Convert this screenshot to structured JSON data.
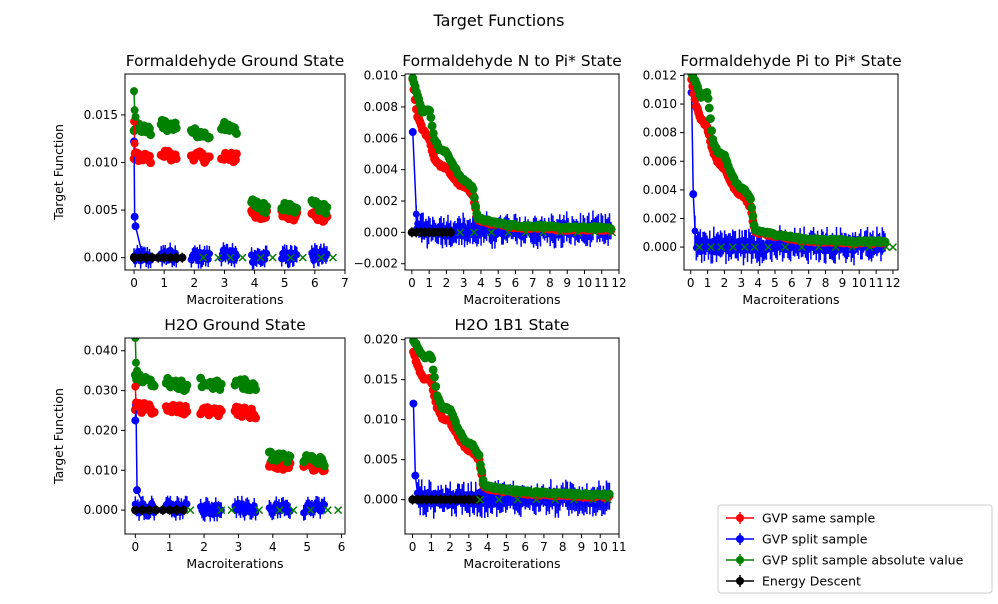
{
  "figure": {
    "suptitle": "Target Functions",
    "legend": {
      "placement": "lower-right",
      "entries": [
        {
          "label": "GVP same sample",
          "color": "#ff0000"
        },
        {
          "label": "GVP split sample",
          "color": "#0000ff"
        },
        {
          "label": "GVP split sample absolute value",
          "color": "#008000"
        },
        {
          "label": "Energy Descent",
          "color": "#000000"
        }
      ]
    }
  },
  "chart_data": [
    {
      "type": "scatter",
      "title": "Formaldehyde Ground State",
      "xlabel": "Macroiterations",
      "ylabel": "Target Function",
      "xlim": [
        -0.3,
        7
      ],
      "ylim": [
        -0.0013,
        0.0193
      ],
      "xticks": [
        0,
        1,
        2,
        3,
        4,
        5,
        6,
        7
      ],
      "yticks": [
        0.0,
        0.005,
        0.01,
        0.015
      ],
      "ytick_labels": [
        "0.000",
        "0.005",
        "0.010",
        "0.015"
      ],
      "grid": false,
      "groups": [
        {
          "start": 0,
          "end": 0.55,
          "same": 0.0107,
          "abs": 0.0137,
          "split": 0.0,
          "energy": 0.0
        },
        {
          "start": 0.9,
          "end": 1.4,
          "same": 0.011,
          "abs": 0.014,
          "split": 0.0003,
          "energy": 0.0
        },
        {
          "start": 1.9,
          "end": 2.5,
          "same": 0.0108,
          "abs": 0.0132,
          "split": 0.0001
        },
        {
          "start": 2.9,
          "end": 3.4,
          "same": 0.0108,
          "abs": 0.0138,
          "split": 0.0003
        },
        {
          "start": 3.9,
          "end": 4.4,
          "same": 0.0048,
          "abs": 0.0056,
          "split": 0.0
        },
        {
          "start": 4.9,
          "end": 5.4,
          "same": 0.0047,
          "abs": 0.0055,
          "split": 0.0001
        },
        {
          "start": 5.9,
          "end": 6.4,
          "same": 0.0046,
          "abs": 0.0055,
          "split": 0.0002
        }
      ],
      "spike": [
        {
          "x": 0,
          "same": 0.0143,
          "abs": 0.0175,
          "split": 0.0122
        },
        {
          "x": 0.02,
          "same": 0.012,
          "abs": 0.0155,
          "split": 0.0043
        },
        {
          "x": 0.05,
          "same": 0.011,
          "abs": 0.0148,
          "split": 0.0033
        }
      ],
      "energy": {
        "x": [
          0,
          0.2,
          0.4,
          0.6,
          0.8,
          1.0,
          1.2,
          1.4,
          1.6
        ],
        "y": [
          0,
          0,
          0,
          0,
          0,
          0,
          0,
          0,
          0
        ]
      },
      "x_markers": [
        2.3,
        2.8,
        3.2,
        3.6,
        4.2,
        4.6,
        5.2,
        5.6,
        6.2,
        6.6
      ]
    },
    {
      "type": "scatter",
      "title": "Formaldehyde N to Pi* State",
      "xlabel": "Macroiterations",
      "ylabel": "",
      "xlim": [
        -0.4,
        12
      ],
      "ylim": [
        -0.0024,
        0.0101
      ],
      "xticks": [
        0,
        1,
        2,
        3,
        4,
        5,
        6,
        7,
        8,
        9,
        10,
        11,
        12
      ],
      "yticks": [
        -0.002,
        0.0,
        0.002,
        0.004,
        0.006,
        0.008,
        0.01
      ],
      "ytick_labels": [
        "−0.002",
        "0.000",
        "0.002",
        "0.004",
        "0.006",
        "0.008",
        "0.010"
      ],
      "grid": false,
      "curve": {
        "same": [
          [
            0.05,
            0.0097
          ],
          [
            0.3,
            0.0075
          ],
          [
            0.6,
            0.0066
          ],
          [
            1.0,
            0.006
          ],
          [
            1.3,
            0.0047
          ],
          [
            1.6,
            0.0043
          ],
          [
            2.0,
            0.0041
          ],
          [
            2.4,
            0.0035
          ],
          [
            2.8,
            0.003
          ],
          [
            3.2,
            0.0028
          ],
          [
            3.55,
            0.0024
          ],
          [
            3.8,
            0.0008
          ],
          [
            4.5,
            0.0006
          ],
          [
            5.5,
            0.0004
          ],
          [
            6.5,
            0.0003
          ],
          [
            7.5,
            0.0003
          ],
          [
            8.5,
            0.0002
          ],
          [
            9.5,
            0.0002
          ],
          [
            10.5,
            0.0002
          ],
          [
            11.6,
            0.0002
          ]
        ],
        "abs": [
          [
            0.05,
            0.0099
          ],
          [
            0.3,
            0.0088
          ],
          [
            0.6,
            0.0077
          ],
          [
            1.0,
            0.0079
          ],
          [
            1.3,
            0.006
          ],
          [
            1.6,
            0.0053
          ],
          [
            2.0,
            0.0051
          ],
          [
            2.4,
            0.0043
          ],
          [
            2.8,
            0.0035
          ],
          [
            3.2,
            0.0032
          ],
          [
            3.55,
            0.0028
          ],
          [
            3.8,
            0.0009
          ],
          [
            4.5,
            0.0007
          ],
          [
            5.5,
            0.0005
          ],
          [
            6.5,
            0.0004
          ],
          [
            7.5,
            0.0004
          ],
          [
            8.5,
            0.0003
          ],
          [
            9.5,
            0.0003
          ],
          [
            10.5,
            0.0003
          ],
          [
            11.6,
            0.0003
          ]
        ],
        "split": [
          [
            0.05,
            0.0064
          ],
          [
            0.3,
            0.0002
          ],
          [
            1.0,
            0.0002
          ],
          [
            2.0,
            0.0001
          ],
          [
            3.0,
            0.0001
          ],
          [
            4.0,
            0.0001
          ],
          [
            5.0,
            0.0001
          ],
          [
            6.0,
            0.0001
          ],
          [
            7.0,
            0.0001
          ],
          [
            8.0,
            0.0001
          ],
          [
            9.0,
            0.0001
          ],
          [
            10.0,
            0.0001
          ],
          [
            11.6,
            0.0001
          ]
        ],
        "split_err": 0.0008
      },
      "energy": {
        "x": [
          0,
          0.25,
          0.5,
          0.75,
          1.0,
          1.25,
          1.5,
          1.75,
          2.0,
          2.25
        ],
        "y": [
          0,
          0,
          0,
          0,
          0,
          0,
          0,
          0,
          0,
          0
        ]
      },
      "x_markers": [
        2.8,
        3.6,
        4.6,
        5.6,
        6.6,
        7.6,
        8.6,
        9.6,
        10.6,
        11.6
      ]
    },
    {
      "type": "scatter",
      "title": "Formaldehyde Pi to Pi* State",
      "xlabel": "Macroiterations",
      "ylabel": "",
      "xlim": [
        -0.4,
        12.3
      ],
      "ylim": [
        -0.0016,
        0.0121
      ],
      "xticks": [
        0,
        1,
        2,
        3,
        4,
        5,
        6,
        7,
        8,
        9,
        10,
        11,
        12
      ],
      "yticks": [
        0.0,
        0.002,
        0.004,
        0.006,
        0.008,
        0.01,
        0.012
      ],
      "ytick_labels": [
        "0.000",
        "0.002",
        "0.004",
        "0.006",
        "0.008",
        "0.010",
        "0.012"
      ],
      "grid": false,
      "curve": {
        "same": [
          [
            0.05,
            0.0118
          ],
          [
            0.3,
            0.01
          ],
          [
            0.6,
            0.009
          ],
          [
            1.0,
            0.0083
          ],
          [
            1.3,
            0.0068
          ],
          [
            1.6,
            0.006
          ],
          [
            2.0,
            0.0055
          ],
          [
            2.4,
            0.0045
          ],
          [
            2.8,
            0.0038
          ],
          [
            3.2,
            0.0035
          ],
          [
            3.55,
            0.0028
          ],
          [
            3.8,
            0.0011
          ],
          [
            4.5,
            0.0009
          ],
          [
            5.5,
            0.0007
          ],
          [
            6.5,
            0.0005
          ],
          [
            7.5,
            0.0004
          ],
          [
            8.5,
            0.0004
          ],
          [
            9.5,
            0.0003
          ],
          [
            10.5,
            0.0003
          ],
          [
            11.6,
            0.0003
          ]
        ],
        "abs": [
          [
            0.05,
            0.0121
          ],
          [
            0.3,
            0.0115
          ],
          [
            0.6,
            0.0105
          ],
          [
            1.0,
            0.0108
          ],
          [
            1.3,
            0.0075
          ],
          [
            1.6,
            0.0066
          ],
          [
            2.0,
            0.0065
          ],
          [
            2.4,
            0.0051
          ],
          [
            2.8,
            0.0043
          ],
          [
            3.2,
            0.004
          ],
          [
            3.55,
            0.0033
          ],
          [
            3.8,
            0.0012
          ],
          [
            4.5,
            0.001
          ],
          [
            5.5,
            0.0008
          ],
          [
            6.5,
            0.0006
          ],
          [
            7.5,
            0.0005
          ],
          [
            8.5,
            0.0005
          ],
          [
            9.5,
            0.0004
          ],
          [
            10.5,
            0.0004
          ],
          [
            11.6,
            0.0004
          ]
        ],
        "split": [
          [
            0.05,
            0.0108
          ],
          [
            0.15,
            0.0037
          ],
          [
            0.3,
            0.0002
          ],
          [
            1.0,
            0.0001
          ],
          [
            2.0,
            0.0001
          ],
          [
            3.0,
            0.0001
          ],
          [
            4.0,
            0.0001
          ],
          [
            5.0,
            0.0001
          ],
          [
            6.0,
            0.0001
          ],
          [
            7.0,
            0.0001
          ],
          [
            8.0,
            0.0001
          ],
          [
            9.0,
            0.0001
          ],
          [
            10.0,
            0.0001
          ],
          [
            11.6,
            0.0001
          ]
        ],
        "split_err": 0.0009
      },
      "energy": {
        "x": [],
        "y": []
      },
      "x_markers": [
        0.5,
        1.2,
        1.8,
        2.5,
        3.2,
        3.8,
        4.6,
        5.6,
        6.6,
        7.6,
        8.6,
        9.6,
        10.6,
        11.6,
        12.0
      ]
    },
    {
      "type": "scatter",
      "title": "H2O Ground State",
      "xlabel": "Macroiterations",
      "ylabel": "Target Function",
      "xlim": [
        -0.3,
        6.1
      ],
      "ylim": [
        -0.006,
        0.0432
      ],
      "xticks": [
        0,
        1,
        2,
        3,
        4,
        5,
        6
      ],
      "yticks": [
        0.0,
        0.01,
        0.02,
        0.03,
        0.04
      ],
      "ytick_labels": [
        "0.000",
        "0.010",
        "0.020",
        "0.030",
        "0.040"
      ],
      "grid": false,
      "groups": [
        {
          "start": 0,
          "end": 0.55,
          "same": 0.026,
          "abs": 0.033,
          "split": 0.0005,
          "energy": 0.0
        },
        {
          "start": 0.9,
          "end": 1.5,
          "same": 0.026,
          "abs": 0.032,
          "split": 0.0005,
          "energy": 0.0
        },
        {
          "start": 1.9,
          "end": 2.5,
          "same": 0.025,
          "abs": 0.032,
          "split": 0.0003
        },
        {
          "start": 2.9,
          "end": 3.5,
          "same": 0.025,
          "abs": 0.032,
          "split": 0.0005
        },
        {
          "start": 3.9,
          "end": 4.5,
          "same": 0.012,
          "abs": 0.0135,
          "split": 0.0005
        },
        {
          "start": 4.9,
          "end": 5.5,
          "same": 0.0115,
          "abs": 0.013,
          "split": 0.0005
        }
      ],
      "spike": [
        {
          "x": 0,
          "same": 0.031,
          "abs": 0.0432,
          "split": 0.0225
        },
        {
          "x": 0.02,
          "same": 0.027,
          "abs": 0.037,
          "split": 0.0265
        },
        {
          "x": 0.05,
          "same": 0.026,
          "abs": 0.035,
          "split": 0.005
        }
      ],
      "energy": {
        "x": [
          0,
          0.2,
          0.4,
          0.6,
          0.8,
          1.0,
          1.2,
          1.4
        ],
        "y": [
          0,
          0,
          0,
          0,
          0,
          0,
          0,
          0
        ]
      },
      "x_markers": [
        1.6,
        2.5,
        2.8,
        3.6,
        4.2,
        4.6,
        5.1,
        5.6,
        5.9
      ]
    },
    {
      "type": "scatter",
      "title": "H2O 1B1 State",
      "xlabel": "Macroiterations",
      "ylabel": "",
      "xlim": [
        -0.4,
        11
      ],
      "ylim": [
        -0.0043,
        0.0202
      ],
      "xticks": [
        0,
        1,
        2,
        3,
        4,
        5,
        6,
        7,
        8,
        9,
        10,
        11
      ],
      "yticks": [
        0.0,
        0.005,
        0.01,
        0.015,
        0.02
      ],
      "ytick_labels": [
        "0.000",
        "0.005",
        "0.010",
        "0.015",
        "0.020"
      ],
      "grid": false,
      "curve": {
        "same": [
          [
            0.05,
            0.0185
          ],
          [
            0.3,
            0.0165
          ],
          [
            0.6,
            0.015
          ],
          [
            1.0,
            0.015
          ],
          [
            1.3,
            0.0115
          ],
          [
            1.6,
            0.0102
          ],
          [
            2.0,
            0.0098
          ],
          [
            2.4,
            0.008
          ],
          [
            2.8,
            0.0065
          ],
          [
            3.2,
            0.006
          ],
          [
            3.55,
            0.005
          ],
          [
            3.8,
            0.0015
          ],
          [
            4.5,
            0.0012
          ],
          [
            5.5,
            0.0009
          ],
          [
            6.5,
            0.0007
          ],
          [
            7.5,
            0.0006
          ],
          [
            8.5,
            0.0005
          ],
          [
            9.5,
            0.0004
          ],
          [
            10.5,
            0.0004
          ]
        ],
        "abs": [
          [
            0.05,
            0.02
          ],
          [
            0.3,
            0.019
          ],
          [
            0.6,
            0.0178
          ],
          [
            1.0,
            0.018
          ],
          [
            1.3,
            0.013
          ],
          [
            1.6,
            0.0115
          ],
          [
            2.0,
            0.0113
          ],
          [
            2.4,
            0.009
          ],
          [
            2.8,
            0.0072
          ],
          [
            3.2,
            0.0068
          ],
          [
            3.55,
            0.0055
          ],
          [
            3.8,
            0.0018
          ],
          [
            4.5,
            0.0014
          ],
          [
            5.5,
            0.0011
          ],
          [
            6.5,
            0.0009
          ],
          [
            7.5,
            0.0008
          ],
          [
            8.5,
            0.0007
          ],
          [
            9.5,
            0.0006
          ],
          [
            10.5,
            0.0006
          ]
        ],
        "split": [
          [
            0.05,
            0.012
          ],
          [
            0.15,
            0.003
          ],
          [
            0.3,
            0.0002
          ],
          [
            1.0,
            0.0001
          ],
          [
            2.0,
            0.0001
          ],
          [
            3.0,
            0.0001
          ],
          [
            4.0,
            0.0001
          ],
          [
            5.0,
            0.0001
          ],
          [
            6.0,
            0.0001
          ],
          [
            7.0,
            0.0001
          ],
          [
            8.0,
            0.0001
          ],
          [
            9.0,
            0.0001
          ],
          [
            10.5,
            0.0001
          ]
        ],
        "split_err": 0.0016
      },
      "energy": {
        "x": [
          0,
          0.25,
          0.5,
          0.75,
          1.0,
          1.25,
          1.5,
          1.75,
          2.0,
          2.25,
          2.5,
          2.75,
          3.0,
          3.25,
          3.5
        ],
        "y": [
          0,
          0,
          0,
          0,
          0,
          0,
          0,
          0,
          0,
          0,
          0,
          0,
          0,
          0,
          0
        ]
      },
      "x_markers": [
        3.6,
        4.6,
        5.6,
        6.6,
        7.6,
        8.6,
        9.6,
        10.4
      ]
    }
  ]
}
